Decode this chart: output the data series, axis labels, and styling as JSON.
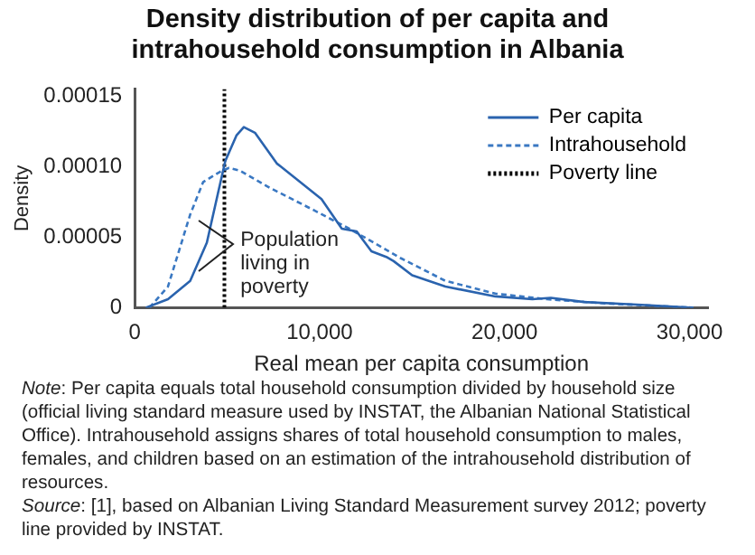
{
  "chart_data": {
    "type": "line",
    "title": "Density distribution of per capita and intrahousehold consumption in Albania",
    "xlabel": "Real mean per capita consumption",
    "ylabel": "Density",
    "xlim": [
      0,
      31000
    ],
    "xticks": [
      {
        "value": 0,
        "label": "0"
      },
      {
        "value": 10000,
        "label": "10,000"
      },
      {
        "value": 20000,
        "label": "20,000"
      },
      {
        "value": 30000,
        "label": "30,000"
      }
    ],
    "ylim": [
      0,
      0.000155
    ],
    "yticks": [
      {
        "value": 0,
        "label": "0"
      },
      {
        "value": 5e-05,
        "label": "0.00005"
      },
      {
        "value": 0.0001,
        "label": "0.00010"
      },
      {
        "value": 0.00015,
        "label": "0.00015"
      }
    ],
    "legend": "top right",
    "marker": "none",
    "series": [
      {
        "name": "Per capita",
        "color": "#2a63ae",
        "line_style": "solid",
        "x": [
          600,
          1800,
          3000,
          3900,
          4500,
          4900,
          5500,
          5900,
          6500,
          7700,
          7900,
          10100,
          11200,
          12000,
          12800,
          13600,
          14000,
          15000,
          16800,
          19500,
          21500,
          22500,
          24300,
          27400,
          30200
        ],
        "values": [
          0,
          6e-06,
          1.9e-05,
          4.6e-05,
          8.1e-05,
          0.000104,
          0.000122,
          0.000128,
          0.000124,
          0.000102,
          0.0001,
          7.7e-05,
          5.6e-05,
          5.4e-05,
          4e-05,
          3.6e-05,
          3.3e-05,
          2.3e-05,
          1.5e-05,
          8e-06,
          6e-06,
          7e-06,
          4e-06,
          2e-06,
          0
        ]
      },
      {
        "name": "Intrahousehold",
        "color": "#3a78c2",
        "line_style": "dashed",
        "x": [
          800,
          1800,
          3000,
          3700,
          4700,
          5100,
          5700,
          7300,
          9700,
          11600,
          14400,
          16800,
          19500,
          22300,
          25500,
          30200
        ],
        "values": [
          0,
          1.5e-05,
          6.6e-05,
          8.9e-05,
          9.7e-05,
          9.9e-05,
          9.7e-05,
          8.5e-05,
          6.9e-05,
          5.6e-05,
          3.5e-05,
          1.9e-05,
          1e-05,
          6e-06,
          3e-06,
          0
        ]
      },
      {
        "name": "Poverty line",
        "color": "#000000",
        "line_style": "dotted",
        "x": [
          4850,
          4850
        ],
        "values": [
          0,
          0.000155
        ]
      }
    ],
    "annotations": [
      "Population living in poverty",
      "Note: Per capita equals total household consumption divided by household size (official living standard measure used by INSTAT, the Albanian National Statistical Office). Intrahousehold assigns shares of total household consumption to males, females, and children based on an estimation of the intrahousehold distribution of resources.",
      "Source: [1], based on Albanian Living Standard Measurement survey 2012; poverty line provided by INSTAT."
    ]
  }
}
